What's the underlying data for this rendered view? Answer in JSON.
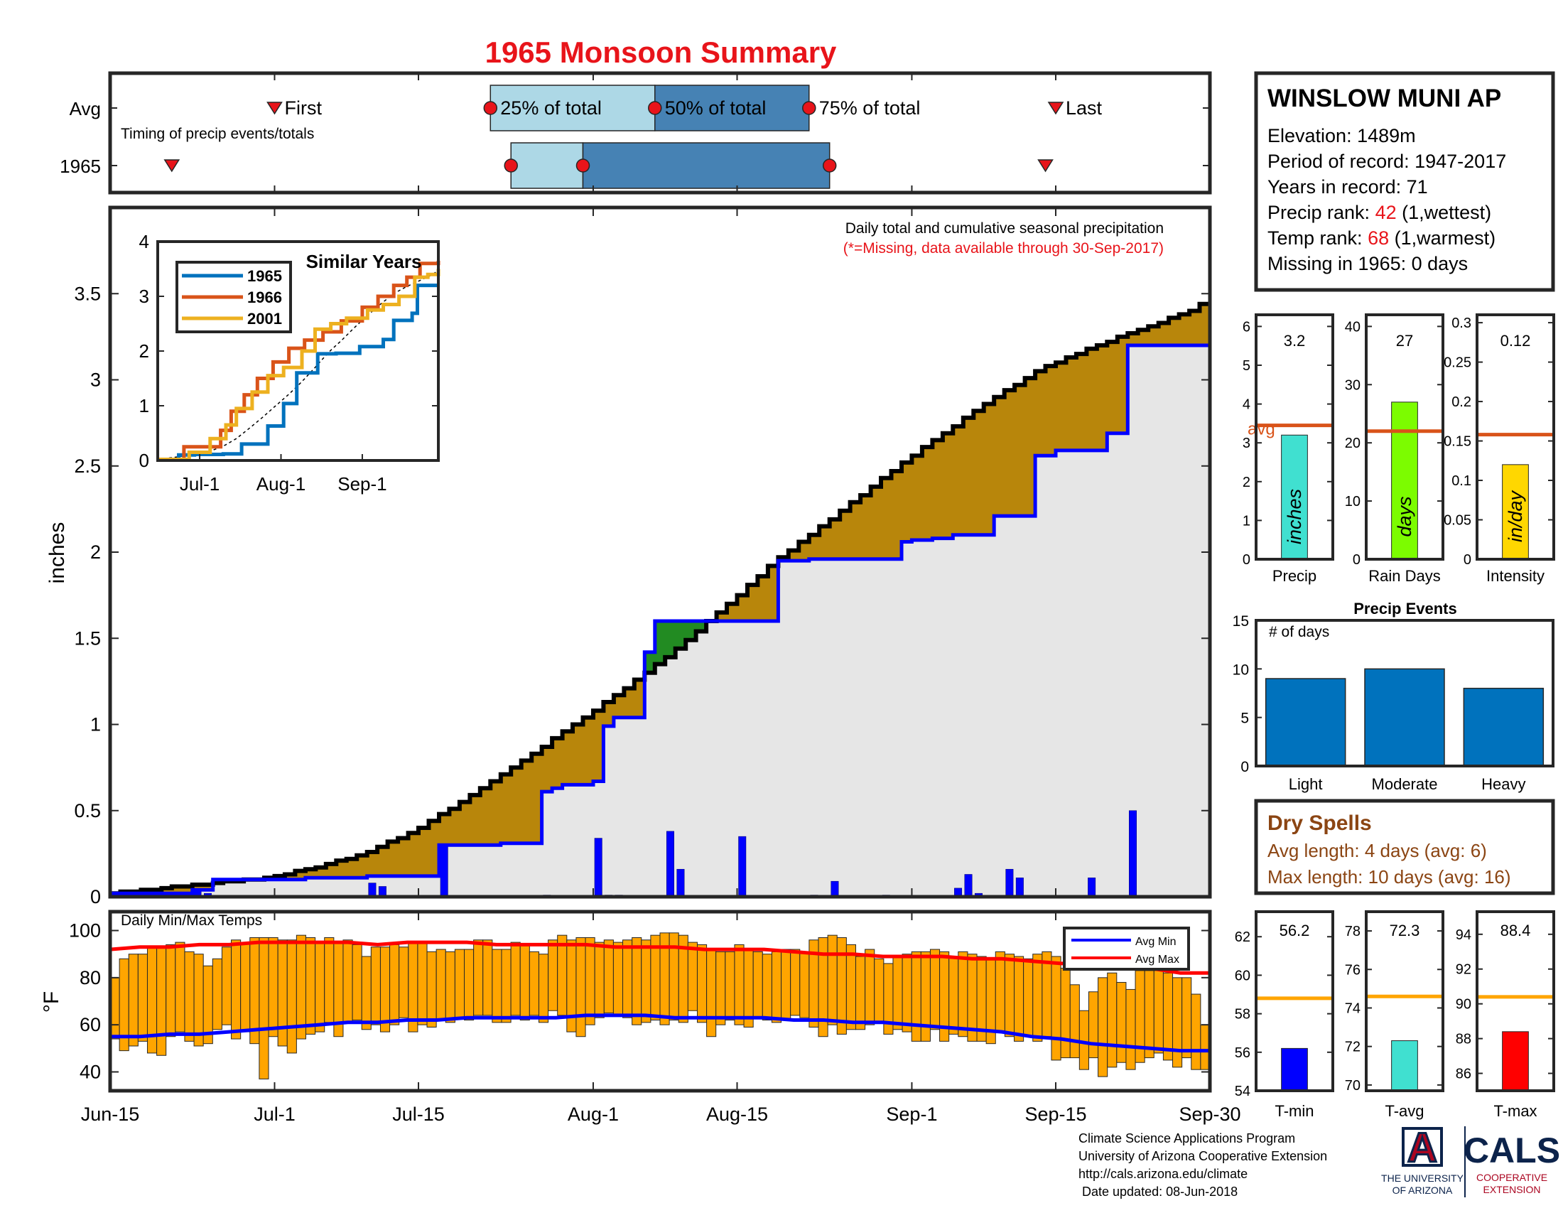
{
  "figure": {
    "title": "1965 Monsoon Summary",
    "credits": [
      "Climate Science Applications Program",
      "University of Arizona Cooperative Extension",
      "http://cals.arizona.edu/climate",
      " Date updated: 08-Jun-2018"
    ],
    "logos": {
      "ua_letter": "A",
      "ua_line1": "THE UNIVERSITY",
      "ua_line2": "OF ARIZONA",
      "cals": "CALS",
      "cals_line1": "COOPERATIVE",
      "cals_line2": "EXTENSION"
    },
    "colors": {
      "title": "#e8141a",
      "light_blue": "#add8e6",
      "dark_blue": "#4682b4",
      "brown_fill": "#b8860b",
      "green_fill": "#228b22",
      "grey_fill": "#e6e6e6",
      "observed_line": "#0000ff",
      "avg_line": "#000000",
      "temp_bar": "#ffa500",
      "avg_ref": "#d95319",
      "dry_text": "#8b4513"
    }
  },
  "station": {
    "name": "WINSLOW MUNI AP",
    "elevation": "Elevation: 1489m",
    "period": "Period of record: 1947-2017",
    "years": "Years in record: 71",
    "precip_prefix": "Precip rank: ",
    "precip_rank": "42",
    "precip_suffix": " (1,wettest)",
    "temp_prefix": "Temp rank: ",
    "temp_rank": "68",
    "temp_suffix": " (1,warmest)",
    "missing": "Missing in 1965: 0 days"
  },
  "dry_spells": {
    "title": "Dry Spells",
    "avg_length": "Avg length: 4 days (avg: 6)",
    "max_length": "Max length: 10 days (avg: 16)"
  },
  "chart_data": [
    {
      "id": "timing",
      "type": "bar",
      "subtitle": "Timing of precip events/totals",
      "rows": [
        "Avg",
        "1965"
      ],
      "labels": {
        "first": "First",
        "q25": "25% of total",
        "q50": "50% of total",
        "q75": "75% of total",
        "last": "Last"
      },
      "avg": {
        "first": 16,
        "q25": 37,
        "q50": 53,
        "q75": 68,
        "last": 92
      },
      "y1965": {
        "first": 6,
        "q25": 39,
        "q50": 46,
        "q75": 70,
        "last": 91
      }
    },
    {
      "id": "cumulative",
      "type": "area",
      "note": "Daily total and cumulative seasonal precipitation",
      "note2": "(*=Missing, data available through 30-Sep-2017)",
      "ylabel": "inches",
      "ylim": [
        0,
        4
      ],
      "yticks": [
        0,
        0.5,
        1,
        1.5,
        2,
        2.5,
        3,
        3.5
      ],
      "ytick_labels": [
        "0",
        "0.5",
        "1",
        "1.5",
        "2",
        "2.5",
        "3",
        "3.5"
      ],
      "start_date": "1965-06-15",
      "end_date": "1965-09-30",
      "avg_cumulative": {
        "days": [
          0,
          5,
          10,
          15,
          20,
          25,
          30,
          35,
          40,
          45,
          50,
          55,
          60,
          65,
          70,
          75,
          80,
          85,
          90,
          95,
          100,
          105,
          107
        ],
        "values": [
          0.02,
          0.05,
          0.08,
          0.11,
          0.17,
          0.26,
          0.4,
          0.59,
          0.79,
          1.0,
          1.21,
          1.44,
          1.7,
          1.97,
          2.19,
          2.43,
          2.65,
          2.86,
          3.05,
          3.18,
          3.29,
          3.4,
          3.48
        ]
      },
      "observed_cumulative": {
        "days": [
          0,
          8,
          10,
          14,
          19,
          25,
          30,
          32,
          38,
          42,
          43,
          44,
          45,
          47,
          48,
          49,
          50,
          52,
          53,
          60,
          65,
          66,
          68,
          75,
          77,
          78,
          80,
          82,
          83,
          86,
          90,
          92,
          97,
          99,
          107
        ],
        "values": [
          0.02,
          0.04,
          0.1,
          0.1,
          0.11,
          0.12,
          0.12,
          0.3,
          0.31,
          0.61,
          0.63,
          0.65,
          0.65,
          0.67,
          0.99,
          1.04,
          1.04,
          1.42,
          1.6,
          1.6,
          1.95,
          1.95,
          1.96,
          1.96,
          2.06,
          2.07,
          2.08,
          2.1,
          2.1,
          2.21,
          2.56,
          2.59,
          2.69,
          3.2,
          3.2
        ]
      },
      "daily_bars": {
        "days": [
          8,
          9,
          25,
          26,
          32,
          42,
          47,
          48,
          49,
          54,
          55,
          61,
          68,
          70,
          75,
          82,
          83,
          84,
          87,
          88,
          95,
          99
        ],
        "values": [
          0.04,
          0.02,
          0.08,
          0.06,
          0.3,
          0.01,
          0.34,
          0.01,
          0.01,
          0.38,
          0.16,
          0.35,
          0.01,
          0.09,
          0.01,
          0.05,
          0.13,
          0.02,
          0.16,
          0.11,
          0.11,
          0.5
        ]
      }
    },
    {
      "id": "similar",
      "type": "line",
      "title": "Similar Years",
      "ylim": [
        0,
        4
      ],
      "yticks": [
        "0",
        "1",
        "2",
        "3",
        "4"
      ],
      "xticks": [
        "Jul-1",
        "Aug-1",
        "Sep-1"
      ],
      "series": [
        {
          "name": "1965",
          "color": "#0072bd",
          "days": [
            0,
            8,
            14,
            25,
            32,
            42,
            48,
            53,
            61,
            68,
            77,
            86,
            90,
            97,
            99,
            107
          ],
          "values": [
            0.02,
            0.1,
            0.11,
            0.12,
            0.3,
            0.63,
            1.04,
            1.6,
            1.95,
            1.96,
            2.08,
            2.21,
            2.56,
            2.69,
            3.2,
            3.2
          ]
        },
        {
          "name": "1966",
          "color": "#d95319",
          "days": [
            0,
            10,
            18,
            24,
            28,
            33,
            38,
            44,
            50,
            56,
            63,
            70,
            78,
            84,
            90,
            95,
            100,
            107
          ],
          "values": [
            0.02,
            0.25,
            0.25,
            0.55,
            0.9,
            1.2,
            1.5,
            1.8,
            2.05,
            2.2,
            2.35,
            2.55,
            2.8,
            3.0,
            3.2,
            3.35,
            3.6,
            3.65
          ]
        },
        {
          "name": "2001",
          "color": "#edb120",
          "days": [
            0,
            12,
            20,
            26,
            30,
            36,
            42,
            48,
            55,
            60,
            66,
            72,
            80,
            86,
            92,
            98,
            103,
            107
          ],
          "values": [
            0.02,
            0.15,
            0.4,
            0.65,
            0.95,
            1.25,
            1.55,
            1.7,
            2.0,
            2.4,
            2.5,
            2.6,
            2.75,
            2.85,
            3.0,
            3.35,
            3.4,
            3.5
          ]
        }
      ]
    },
    {
      "id": "summary_bars",
      "type": "bar",
      "panels": [
        {
          "label": "Precip",
          "unit": "inches",
          "value": 3.2,
          "value_label": "3.2",
          "avg": 3.45,
          "avg_label": "avg",
          "ylim": [
            0,
            6.3
          ],
          "yticks": [
            "0",
            "1",
            "2",
            "3",
            "4",
            "5",
            "6"
          ],
          "tick_values": [
            0,
            1,
            2,
            3,
            4,
            5,
            6
          ],
          "color": "#40e0d0"
        },
        {
          "label": "Rain Days",
          "unit": "days",
          "value": 27,
          "value_label": "27",
          "avg": 22,
          "ylim": [
            0,
            42
          ],
          "yticks": [
            "0",
            "10",
            "20",
            "30",
            "40"
          ],
          "tick_values": [
            0,
            10,
            20,
            30,
            40
          ],
          "color": "#7cfc00"
        },
        {
          "label": "Intensity",
          "unit": "in/day",
          "value": 0.12,
          "value_label": "0.12",
          "avg": 0.158,
          "ylim": [
            0,
            0.31
          ],
          "yticks": [
            "0",
            "0.05",
            "0.1",
            "0.15",
            "0.2",
            "0.25",
            "0.3"
          ],
          "tick_values": [
            0,
            0.05,
            0.1,
            0.15,
            0.2,
            0.25,
            0.3
          ],
          "color": "#ffd700"
        }
      ]
    },
    {
      "id": "events",
      "type": "bar",
      "title": "Precip Events",
      "ylabel": "# of days",
      "ylim": [
        0,
        15
      ],
      "yticks": [
        "0",
        "5",
        "10",
        "15"
      ],
      "categories": [
        "Light",
        "Moderate",
        "Heavy"
      ],
      "values": [
        9,
        10,
        8
      ]
    },
    {
      "id": "temps",
      "type": "bar",
      "label": "Daily Min/Max Temps",
      "ylabel": "°F",
      "ylim": [
        32,
        108
      ],
      "yticks": [
        "40",
        "60",
        "80",
        "100"
      ],
      "legend": [
        "Avg Min",
        "Avg Max"
      ],
      "xticks": [
        "Jun-15",
        "Jul-1",
        "Jul-15",
        "Aug-1",
        "Aug-15",
        "Sep-1",
        "Sep-15",
        "Sep-30"
      ],
      "tmin": [
        54,
        49,
        51,
        53,
        48,
        47,
        55,
        57,
        53,
        51,
        52,
        58,
        60,
        54,
        57,
        52,
        37,
        55,
        51,
        48,
        54,
        56,
        57,
        61,
        55,
        61,
        62,
        58,
        60,
        57,
        60,
        63,
        57,
        60,
        59,
        62,
        61,
        63,
        62,
        64,
        64,
        61,
        61,
        64,
        62,
        64,
        61,
        66,
        64,
        57,
        55,
        60,
        63,
        65,
        64,
        63,
        60,
        61,
        62,
        60,
        62,
        61,
        66,
        61,
        55,
        60,
        62,
        60,
        59,
        63,
        62,
        61,
        62,
        64,
        63,
        59,
        55,
        60,
        56,
        58,
        58,
        60,
        61,
        56,
        58,
        57,
        53,
        53,
        58,
        53,
        56,
        55,
        53,
        53,
        52,
        57,
        55,
        53,
        55,
        53,
        55,
        45,
        46,
        46,
        41,
        46,
        38,
        42,
        44,
        41,
        44,
        46,
        48,
        45,
        42,
        46,
        41,
        41
      ],
      "tmax": [
        80,
        88,
        90,
        90,
        93,
        93,
        94,
        95,
        91,
        90,
        85,
        88,
        93,
        96,
        95,
        97,
        97,
        97,
        96,
        96,
        98,
        97,
        95,
        97,
        95,
        96,
        94,
        89,
        93,
        93,
        94,
        93,
        95,
        95,
        91,
        92,
        91,
        92,
        92,
        96,
        96,
        92,
        92,
        95,
        94,
        91,
        90,
        96,
        98,
        96,
        97,
        97,
        95,
        96,
        95,
        96,
        97,
        96,
        98,
        99,
        99,
        98,
        95,
        94,
        92,
        91,
        91,
        94,
        92,
        91,
        90,
        91,
        92,
        92,
        91,
        96,
        97,
        98,
        97,
        94,
        89,
        92,
        88,
        86,
        89,
        90,
        91,
        91,
        92,
        91,
        89,
        91,
        90,
        89,
        88,
        91,
        90,
        89,
        88,
        90,
        91,
        89,
        84,
        77,
        66,
        74,
        80,
        82,
        78,
        75,
        83,
        83,
        83,
        82,
        80,
        80,
        73,
        60
      ],
      "avg_min": [
        55,
        55,
        56,
        56,
        57,
        58,
        59,
        60,
        61,
        61,
        62,
        62,
        63,
        63,
        63,
        63,
        64,
        64,
        64,
        63,
        63,
        63,
        63,
        62,
        62,
        61,
        61,
        60,
        59,
        58,
        57,
        55,
        54,
        52,
        51,
        50,
        49,
        49
      ],
      "avg_max": [
        92,
        93,
        93,
        94,
        94,
        95,
        95,
        95,
        95,
        94,
        95,
        95,
        95,
        94,
        94,
        94,
        94,
        93,
        93,
        93,
        92,
        92,
        92,
        91,
        90,
        90,
        89,
        89,
        89,
        88,
        88,
        87,
        86,
        86,
        85,
        84,
        82,
        82
      ]
    },
    {
      "id": "temp_summary",
      "type": "bar",
      "panels": [
        {
          "label": "T-min",
          "value": 56.2,
          "value_label": "56.2",
          "avg": 58.8,
          "ylim": [
            54,
            63.3
          ],
          "yticks": [
            "54",
            "56",
            "58",
            "60",
            "62"
          ],
          "tick_values": [
            54,
            56,
            58,
            60,
            62
          ],
          "color": "#0000ff"
        },
        {
          "label": "T-avg",
          "value": 72.3,
          "value_label": "72.3",
          "avg": 74.6,
          "ylim": [
            69.7,
            79
          ],
          "yticks": [
            "70",
            "72",
            "74",
            "76",
            "78"
          ],
          "tick_values": [
            70,
            72,
            74,
            76,
            78
          ],
          "color": "#40e0d0"
        },
        {
          "label": "T-max",
          "value": 88.4,
          "value_label": "88.4",
          "avg": 90.4,
          "ylim": [
            85,
            95.3
          ],
          "yticks": [
            "86",
            "88",
            "90",
            "92",
            "94"
          ],
          "tick_values": [
            86,
            88,
            90,
            92,
            94
          ],
          "color": "#ff0000"
        }
      ]
    }
  ]
}
